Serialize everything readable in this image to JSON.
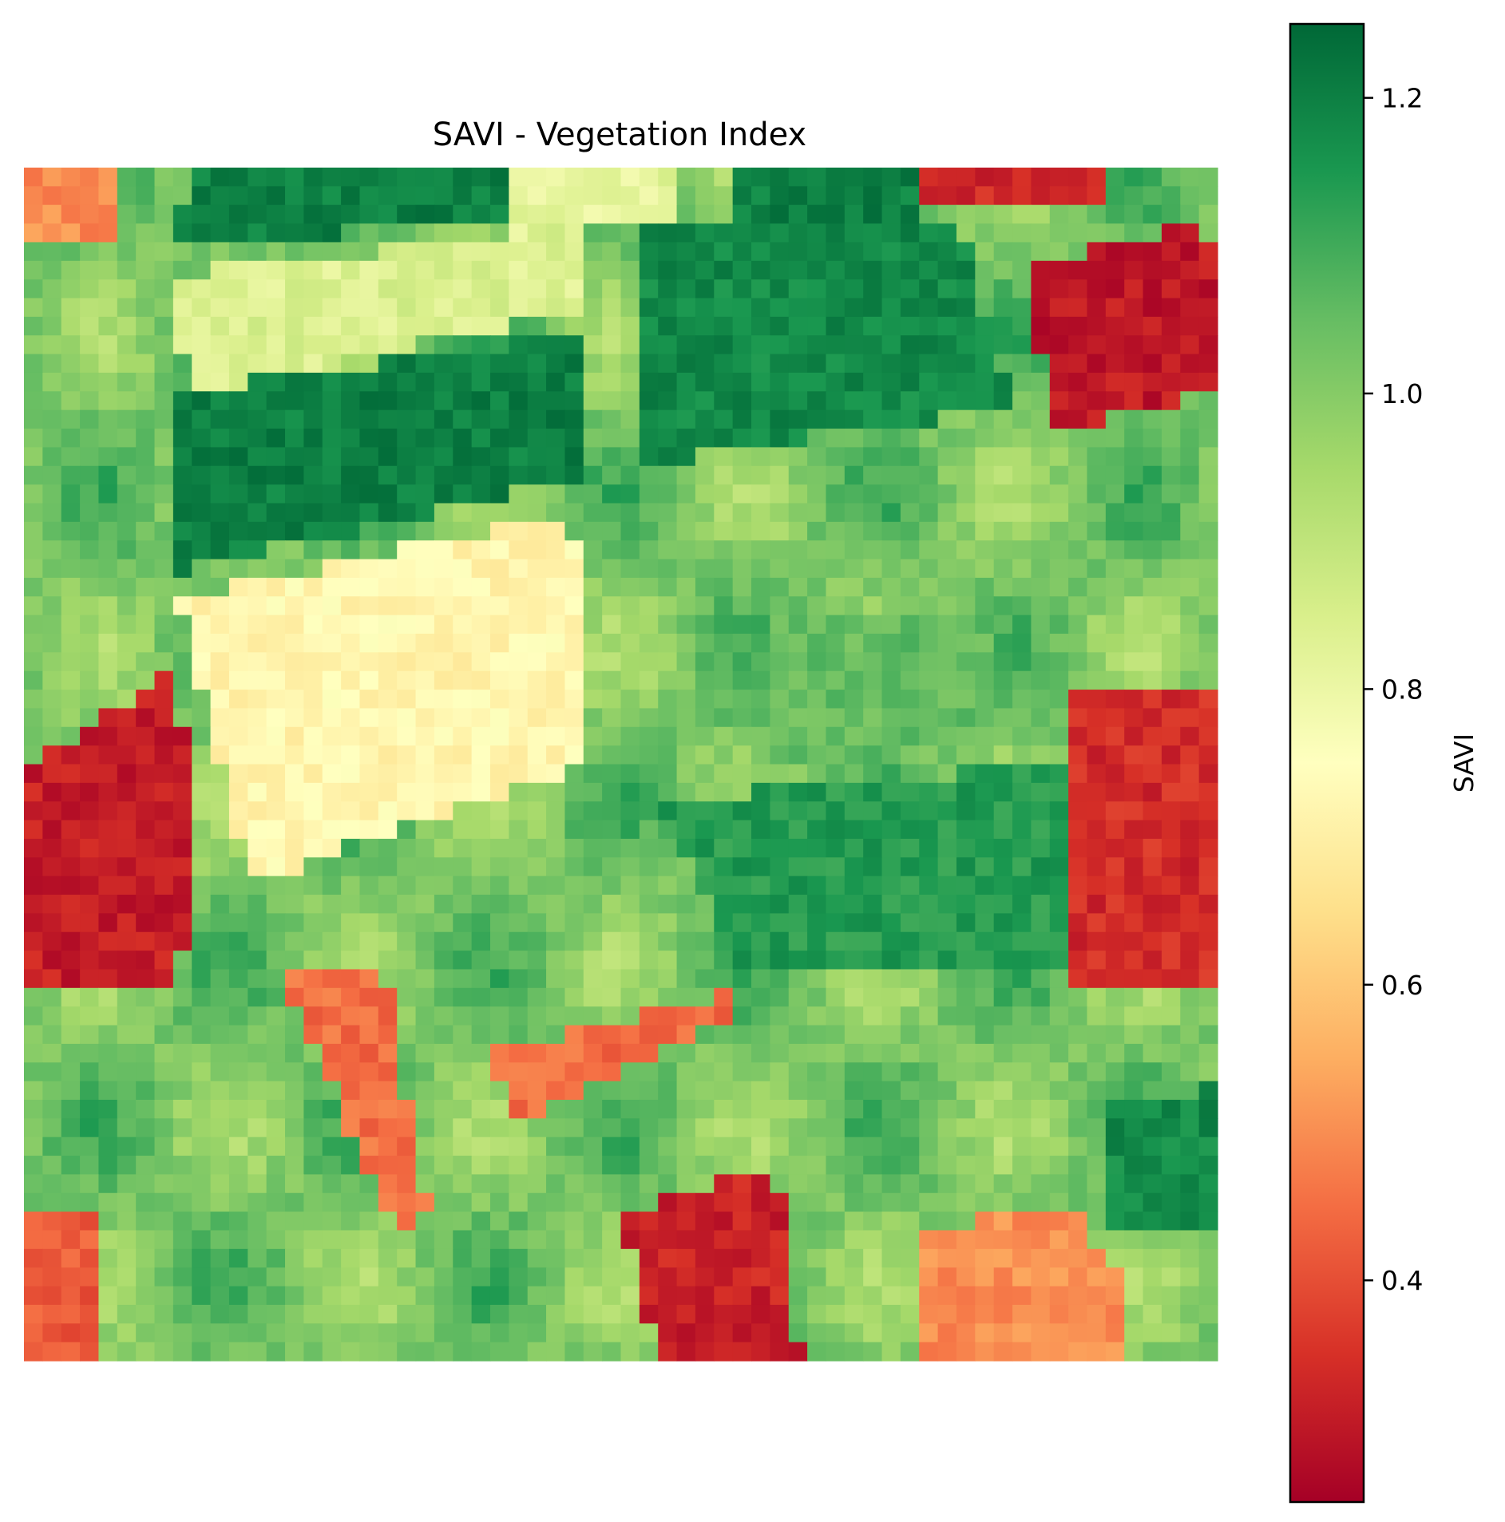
{
  "chart_data": {
    "type": "heatmap",
    "title": "SAVI - Vegetation Index",
    "colormap": "RdYlGn",
    "colorbar": {
      "label": "SAVI",
      "range": [
        0.25,
        1.25
      ],
      "ticks": [
        0.4,
        0.6,
        0.8,
        1.0,
        1.2
      ],
      "tick_labels": [
        "0.4",
        "0.6",
        "0.8",
        "1.0",
        "1.2"
      ]
    },
    "grid": false,
    "axes_visible": false,
    "rows": 64,
    "cols": 64,
    "value_min": 0.25,
    "value_max": 1.25,
    "regions": [
      {
        "name": "background",
        "value": 1.02
      },
      {
        "name": "top-left corner patch",
        "value": 0.5
      },
      {
        "name": "top-center dark green field",
        "value": 1.2
      },
      {
        "name": "top-center light strip",
        "value": 0.82
      },
      {
        "name": "top-right red patch",
        "value": 0.33
      },
      {
        "name": "upper-left light band",
        "value": 0.84
      },
      {
        "name": "upper-left dark green band",
        "value": 1.2
      },
      {
        "name": "upper-center dark green field",
        "value": 1.18
      },
      {
        "name": "right-upper red field",
        "value": 0.3
      },
      {
        "name": "center pale yellow field",
        "value": 0.72
      },
      {
        "name": "center mid-green area",
        "value": 1.05
      },
      {
        "name": "left red field",
        "value": 0.31
      },
      {
        "name": "right-center red field",
        "value": 0.34
      },
      {
        "name": "center dark green area",
        "value": 1.14
      },
      {
        "name": "lower-center red diagonal strips",
        "value": 0.45
      },
      {
        "name": "bottom-center red field",
        "value": 0.32
      },
      {
        "name": "bottom-right orange field",
        "value": 0.5
      },
      {
        "name": "bottom-right dark green field",
        "value": 1.18
      },
      {
        "name": "bottom-left red patch",
        "value": 0.42
      }
    ]
  }
}
